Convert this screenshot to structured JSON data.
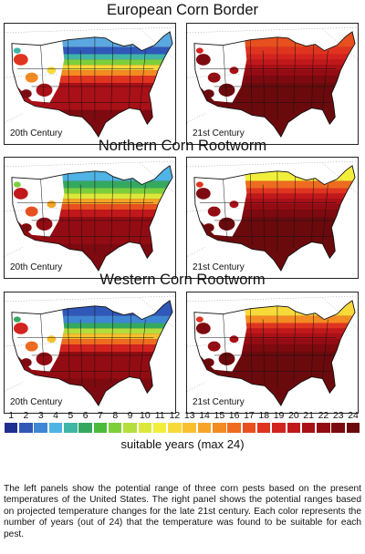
{
  "sections": [
    {
      "title": "European Corn Border",
      "left_label": "20th Century",
      "right_label": "21st Century"
    },
    {
      "title": "Northern Corn Rootworm",
      "left_label": "20th Century",
      "right_label": "21st Century"
    },
    {
      "title": "Western Corn Rootworm",
      "left_label": "20th Century",
      "right_label": "21st Century"
    }
  ],
  "legend": {
    "values": [
      "1",
      "2",
      "3",
      "4",
      "5",
      "6",
      "7",
      "8",
      "9",
      "10",
      "11",
      "12",
      "13",
      "14",
      "15",
      "16",
      "17",
      "18",
      "19",
      "20",
      "21",
      "22",
      "23",
      "24"
    ],
    "colors": [
      "#1f2f8f",
      "#2f58b8",
      "#3f86d4",
      "#4fb3e4",
      "#3fb5a6",
      "#35a860",
      "#4cba3c",
      "#7ccf3b",
      "#b4de3c",
      "#dbe83a",
      "#f2ef3c",
      "#f7d93a",
      "#f8c02e",
      "#f6a526",
      "#f38a22",
      "#ee6b1f",
      "#e8501f",
      "#df3420",
      "#d2231f",
      "#c0181b",
      "#aa1017",
      "#940c13",
      "#7d0a10",
      "#6b0a0d"
    ],
    "caption": "suitable years (max 24)"
  },
  "description": "The left panels show the potential range of three corn pests based on the present temperatures of the United States. The right panel shows the potential ranges based on projected temperature changes for the late 21st century. Each color represents the number of years (out of 24) that the temperature was found to be suitable for each pest."
}
